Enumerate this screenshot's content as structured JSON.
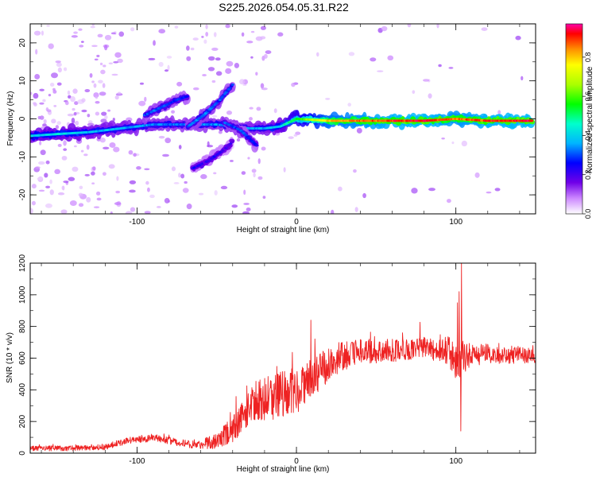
{
  "title": "S225.2026.054.05.31.R22",
  "chart_data": [
    {
      "type": "heatmap",
      "name": "spectrogram",
      "xlabel": "Height of straight line (km)",
      "ylabel": "Frequency (Hz)",
      "xlim": [
        -167,
        150
      ],
      "ylim": [
        -25,
        25
      ],
      "xticks": [
        "-100",
        "0",
        "100"
      ],
      "xtick_values": [
        -100,
        0,
        100
      ],
      "yticks": [
        "-20",
        "-10",
        "0",
        "10",
        "20"
      ],
      "ytick_values": [
        -20,
        -10,
        0,
        10,
        20
      ],
      "colorbar": {
        "label": "Normalized spectral amplitude",
        "range": [
          0,
          0.97
        ],
        "ticks": [
          "0.0",
          "0.2",
          "0.4",
          "0.6",
          "0.8"
        ],
        "tick_values": [
          0,
          0.2,
          0.4,
          0.6,
          0.8
        ],
        "stops": [
          {
            "v": 0.0,
            "color": "#ffffff"
          },
          {
            "v": 0.08,
            "color": "#cc88ff"
          },
          {
            "v": 0.16,
            "color": "#7000e8"
          },
          {
            "v": 0.26,
            "color": "#0000ff"
          },
          {
            "v": 0.36,
            "color": "#00b4ff"
          },
          {
            "v": 0.46,
            "color": "#00ffcc"
          },
          {
            "v": 0.56,
            "color": "#00ff00"
          },
          {
            "v": 0.66,
            "color": "#aaff00"
          },
          {
            "v": 0.76,
            "color": "#ffff00"
          },
          {
            "v": 0.84,
            "color": "#ff9000"
          },
          {
            "v": 0.92,
            "color": "#ff0000"
          },
          {
            "v": 0.97,
            "color": "#ff00aa"
          }
        ]
      },
      "ridges": [
        {
          "name": "main-line",
          "x": [
            -167,
            -150,
            -130,
            -110,
            -90,
            -70,
            -50,
            -30,
            -20,
            -10,
            0,
            20,
            50,
            80,
            100,
            120,
            148
          ],
          "y": [
            -4.5,
            -4,
            -3.5,
            -2.5,
            -1.5,
            -1.5,
            -1.5,
            -2.5,
            -2.5,
            -2,
            0,
            -0.5,
            -0.5,
            -0.5,
            0,
            -0.5,
            -0.5
          ],
          "amp": [
            0.38,
            0.42,
            0.38,
            0.36,
            0.34,
            0.32,
            0.34,
            0.34,
            0.36,
            0.4,
            0.55,
            0.8,
            0.88,
            0.92,
            0.85,
            0.9,
            0.92
          ]
        },
        {
          "name": "rising-branch-1",
          "x": [
            -95,
            -85,
            -75,
            -68
          ],
          "y": [
            1,
            3,
            5,
            6
          ],
          "amp": [
            0.3,
            0.3,
            0.28,
            0.25
          ]
        },
        {
          "name": "rising-branch-2",
          "x": [
            -68,
            -58,
            -48,
            -40
          ],
          "y": [
            -2,
            1,
            5,
            9
          ],
          "amp": [
            0.3,
            0.32,
            0.3,
            0.28
          ]
        },
        {
          "name": "descending-branch",
          "x": [
            -65,
            -55,
            -45,
            -40
          ],
          "y": [
            -13,
            -11,
            -8,
            -6
          ],
          "amp": [
            0.22,
            0.22,
            0.2,
            0.2
          ]
        },
        {
          "name": "side-branch",
          "x": [
            -45,
            -35,
            -25
          ],
          "y": [
            -1,
            -3,
            -7
          ],
          "amp": [
            0.3,
            0.28,
            0.25
          ]
        }
      ]
    },
    {
      "type": "line",
      "name": "snr",
      "xlabel": "Height of straight line (km)",
      "ylabel": "SNR (10 * v/v)",
      "xlim": [
        -167,
        150
      ],
      "ylim": [
        0,
        1200
      ],
      "xticks": [
        "-100",
        "0",
        "100"
      ],
      "xtick_values": [
        -100,
        0,
        100
      ],
      "yticks": [
        "0",
        "200",
        "400",
        "600",
        "800",
        "1000",
        "1200"
      ],
      "ytick_values": [
        0,
        200,
        400,
        600,
        800,
        1000,
        1200
      ],
      "color": "#ee2222",
      "trend_x": [
        -167,
        -140,
        -120,
        -105,
        -95,
        -90,
        -80,
        -70,
        -60,
        -50,
        -40,
        -30,
        -20,
        -10,
        0,
        10,
        20,
        30,
        40,
        60,
        80,
        95,
        100,
        105,
        110,
        120,
        130,
        150
      ],
      "trend_y": [
        30,
        30,
        40,
        80,
        90,
        100,
        80,
        60,
        50,
        80,
        150,
        280,
        340,
        380,
        400,
        480,
        560,
        620,
        640,
        650,
        660,
        650,
        550,
        600,
        620,
        630,
        620,
        620
      ],
      "noise_x": [
        -167,
        -120,
        -60,
        -40,
        -20,
        0,
        20,
        40,
        90,
        100,
        105,
        110,
        150
      ],
      "noise_amp": [
        15,
        20,
        25,
        80,
        150,
        150,
        110,
        80,
        70,
        120,
        120,
        70,
        50
      ],
      "spikes": [
        {
          "x": 9,
          "y": 840
        },
        {
          "x": 101,
          "y": 950
        },
        {
          "x": 102,
          "y": 1020
        },
        {
          "x": 103,
          "y": 140
        },
        {
          "x": 103.5,
          "y": 1200
        }
      ]
    }
  ]
}
